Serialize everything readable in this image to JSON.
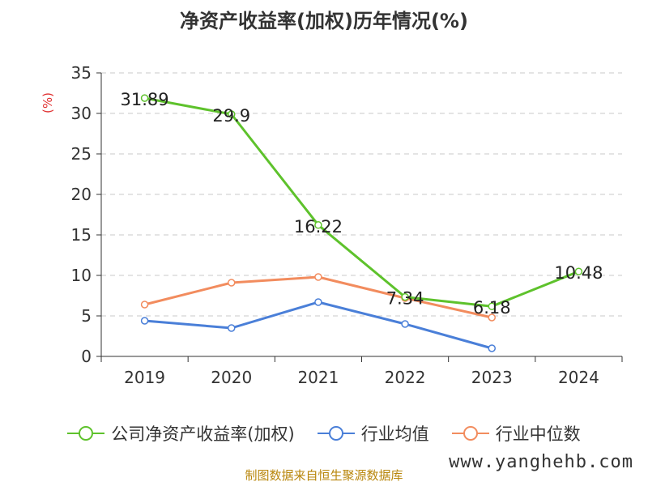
{
  "title": "净资产收益率(加权)历年情况(%)",
  "source": "制图数据来自恒生聚源数据库",
  "watermark": "www.yanghehb.com",
  "colors": {
    "company": "#5ec22c",
    "industry_avg": "#4a7fd8",
    "industry_median": "#f28c5e",
    "grid": "#c8c8c8",
    "axis": "#333333"
  },
  "chart_data": {
    "type": "line",
    "title": "净资产收益率(加权)历年情况(%)",
    "ylabel": "(%)",
    "xlabel": "",
    "ylim": [
      0,
      35
    ],
    "yticks": [
      0,
      5,
      10,
      15,
      20,
      25,
      30,
      35
    ],
    "grid": true,
    "legend_position": "bottom",
    "categories": [
      "2019",
      "2020",
      "2021",
      "2022",
      "2023",
      "2024"
    ],
    "series": [
      {
        "name": "公司净资产收益率(加权)",
        "values": [
          31.89,
          29.9,
          16.22,
          7.34,
          6.18,
          10.48
        ],
        "labels": [
          "31.89",
          "29.9",
          "16.22",
          "7.34",
          "6.18",
          "10.48"
        ],
        "color": "#5ec22c"
      },
      {
        "name": "行业均值",
        "values": [
          4.4,
          3.5,
          6.7,
          4.0,
          1.0,
          null
        ],
        "color": "#4a7fd8"
      },
      {
        "name": "行业中位数",
        "values": [
          6.4,
          9.1,
          9.8,
          7.2,
          4.8,
          null
        ],
        "color": "#f28c5e"
      }
    ]
  }
}
